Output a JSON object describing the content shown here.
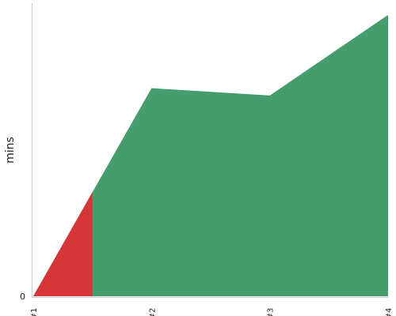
{
  "chart_data": {
    "type": "area",
    "title": "",
    "xlabel": "",
    "ylabel": "mins",
    "categories": [
      "#1",
      "#2",
      "#3",
      "#4"
    ],
    "y_tick_labels": [
      "0"
    ],
    "ylim": [
      0,
      100
    ],
    "grid": false,
    "legend": "none",
    "series": [
      {
        "values": [
          0,
          71,
          68.5,
          96
        ],
        "color": "#459d6e"
      }
    ],
    "highlight": {
      "x_end": 0.5,
      "color": "#d63538"
    },
    "axis_color": "#cccccc"
  }
}
